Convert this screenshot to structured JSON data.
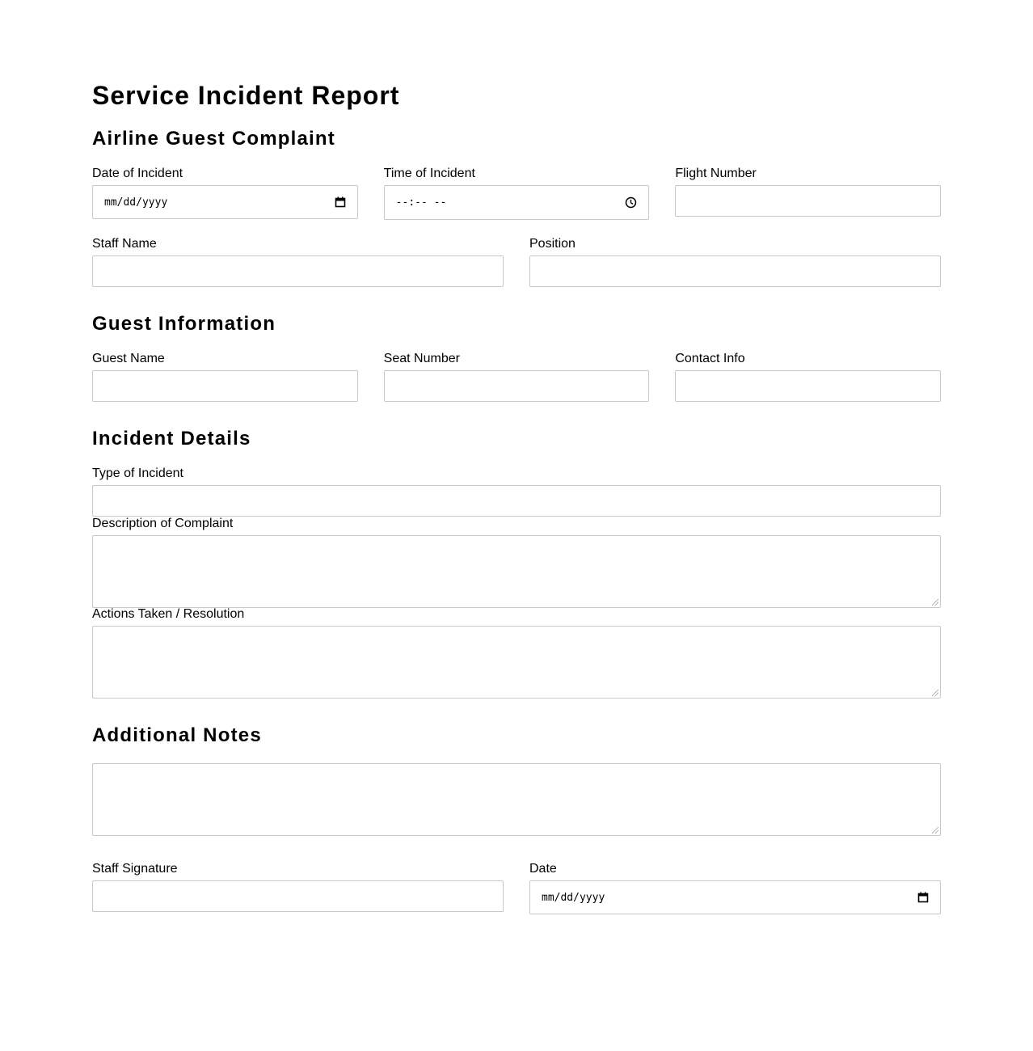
{
  "title": "Service Incident Report",
  "sections": {
    "complaint": {
      "heading": "Airline Guest Complaint",
      "date_label": "Date of Incident",
      "date_placeholder": "mm/dd/yyyy",
      "time_label": "Time of Incident",
      "time_placeholder": "--:-- --",
      "flight_label": "Flight Number",
      "staff_label": "Staff Name",
      "position_label": "Position"
    },
    "guest": {
      "heading": "Guest Information",
      "name_label": "Guest Name",
      "seat_label": "Seat Number",
      "contact_label": "Contact Info"
    },
    "details": {
      "heading": "Incident Details",
      "type_label": "Type of Incident",
      "description_label": "Description of Complaint",
      "actions_label": "Actions Taken / Resolution"
    },
    "notes": {
      "heading": "Additional Notes",
      "signature_label": "Staff Signature",
      "date_label": "Date",
      "date_placeholder": "mm/dd/yyyy"
    }
  },
  "icons": {
    "date": "calendar-icon",
    "time": "clock-icon"
  }
}
